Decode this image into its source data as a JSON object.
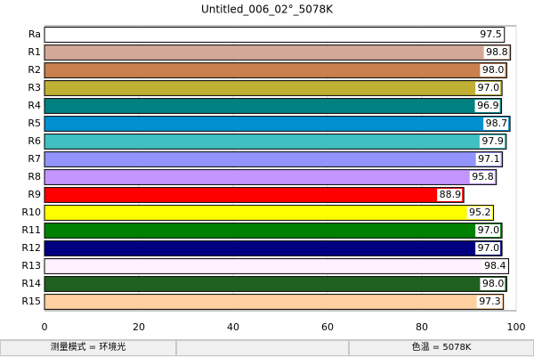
{
  "chart_data": {
    "type": "barh",
    "title": "Untitled_006_02°_5078K",
    "categories": [
      "Ra",
      "R1",
      "R2",
      "R3",
      "R4",
      "R5",
      "R6",
      "R7",
      "R8",
      "R9",
      "R10",
      "R11",
      "R12",
      "R13",
      "R14",
      "R15"
    ],
    "values": [
      97.5,
      98.8,
      98.0,
      97.0,
      96.9,
      98.7,
      97.9,
      97.1,
      95.8,
      88.9,
      95.2,
      97.0,
      97.0,
      98.4,
      98.0,
      97.3
    ],
    "value_labels": [
      "97.5",
      "98.8",
      "98.0",
      "97.0",
      "96.9",
      "98.7",
      "97.9",
      "97.1",
      "95.8",
      "88.9",
      "95.2",
      "97.0",
      "97.0",
      "98.4",
      "98.0",
      "97.3"
    ],
    "colors": [
      "#ffffff",
      "#d4a898",
      "#c8804c",
      "#c0b034",
      "#008080",
      "#0090d0",
      "#40c0c0",
      "#9494ff",
      "#c494ff",
      "#ff0000",
      "#ffff00",
      "#008000",
      "#000080",
      "#fff0ff",
      "#206020",
      "#ffd0a0"
    ],
    "xlim": [
      0,
      100
    ],
    "xticks": [
      0,
      20,
      40,
      60,
      80,
      100
    ],
    "grid": true
  },
  "status_bar": [
    "测量模式 = 环境光",
    "",
    "色温 = 5078K"
  ]
}
